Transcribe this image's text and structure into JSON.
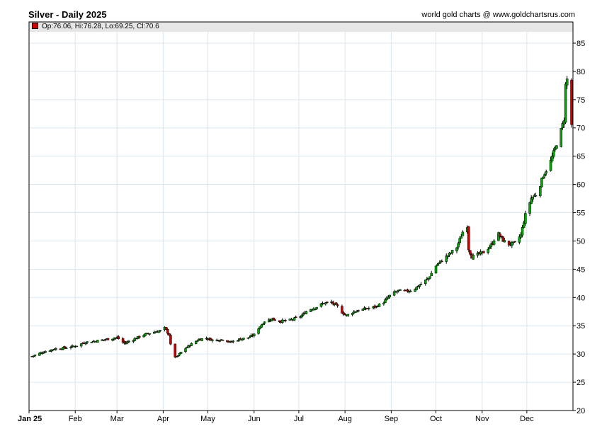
{
  "chart_title": "Silver - Daily 2025",
  "credit": "world gold charts @ www.goldchartsrus.com",
  "ohlc": "Op:76.06, Hi:76.28, Lo:69.25, Cl:70.6",
  "colors": {
    "up": "#00aa00",
    "down": "#cc0000",
    "grid": "#d9e6ef",
    "header": "#e6e6e6"
  },
  "chart_data": {
    "type": "candlestick",
    "title": "Silver - Daily 2025",
    "ylim": [
      20,
      87
    ],
    "yticks": [
      20,
      25,
      30,
      35,
      40,
      45,
      50,
      55,
      60,
      65,
      70,
      75,
      80,
      85
    ],
    "y_axis_side": "right",
    "grid": true,
    "x_labels": [
      {
        "label": "Jan 25",
        "day": 0
      },
      {
        "label": "Feb",
        "day": 31
      },
      {
        "label": "Mar",
        "day": 59
      },
      {
        "label": "Apr",
        "day": 90
      },
      {
        "label": "May",
        "day": 120
      },
      {
        "label": "Jun",
        "day": 151
      },
      {
        "label": "Jul",
        "day": 181
      },
      {
        "label": "Aug",
        "day": 212
      },
      {
        "label": "Sep",
        "day": 243
      },
      {
        "label": "Oct",
        "day": 273
      },
      {
        "label": "Nov",
        "day": 304
      },
      {
        "label": "Dec",
        "day": 334
      }
    ],
    "x_range_days": [
      0,
      364
    ],
    "close_path": [
      [
        2,
        29.6
      ],
      [
        10,
        30.4
      ],
      [
        17,
        30.9
      ],
      [
        24,
        31.1
      ],
      [
        31,
        31.4
      ],
      [
        38,
        32.1
      ],
      [
        45,
        32.3
      ],
      [
        52,
        32.6
      ],
      [
        59,
        32.9
      ],
      [
        64,
        31.9
      ],
      [
        70,
        32.6
      ],
      [
        77,
        33.4
      ],
      [
        84,
        33.9
      ],
      [
        88,
        34.1
      ],
      [
        91,
        34.6
      ],
      [
        94,
        33.4
      ],
      [
        96,
        29.8
      ],
      [
        99,
        29.4
      ],
      [
        103,
        30.6
      ],
      [
        108,
        31.6
      ],
      [
        114,
        32.6
      ],
      [
        119,
        32.8
      ],
      [
        124,
        32.4
      ],
      [
        130,
        32.6
      ],
      [
        135,
        32.1
      ],
      [
        141,
        32.6
      ],
      [
        147,
        32.9
      ],
      [
        151,
        33.4
      ],
      [
        154,
        34.6
      ],
      [
        158,
        35.8
      ],
      [
        163,
        36.2
      ],
      [
        168,
        35.8
      ],
      [
        174,
        35.9
      ],
      [
        180,
        36.4
      ],
      [
        183,
        36.8
      ],
      [
        187,
        37.8
      ],
      [
        192,
        38.2
      ],
      [
        197,
        38.9
      ],
      [
        202,
        39.2
      ],
      [
        207,
        38.4
      ],
      [
        210,
        37.4
      ],
      [
        213,
        36.8
      ],
      [
        217,
        37.4
      ],
      [
        222,
        37.8
      ],
      [
        228,
        38.1
      ],
      [
        233,
        38.4
      ],
      [
        238,
        39.2
      ],
      [
        243,
        40.6
      ],
      [
        248,
        41.2
      ],
      [
        253,
        41.1
      ],
      [
        258,
        41.4
      ],
      [
        263,
        42.4
      ],
      [
        268,
        43.4
      ],
      [
        273,
        45.6
      ],
      [
        278,
        46.8
      ],
      [
        283,
        47.9
      ],
      [
        287,
        48.9
      ],
      [
        291,
        51.6
      ],
      [
        294,
        52.7
      ],
      [
        295,
        48.6
      ],
      [
        297,
        47.2
      ],
      [
        301,
        47.6
      ],
      [
        306,
        48.1
      ],
      [
        311,
        49.6
      ],
      [
        314,
        51.6
      ],
      [
        318,
        50.1
      ],
      [
        322,
        49.4
      ],
      [
        326,
        49.6
      ],
      [
        330,
        51.1
      ],
      [
        333,
        54.6
      ],
      [
        337,
        57.6
      ],
      [
        341,
        58.4
      ],
      [
        345,
        61.6
      ],
      [
        349,
        63.4
      ],
      [
        353,
        66.4
      ],
      [
        357,
        69.6
      ],
      [
        359,
        71.6
      ],
      [
        360,
        77.6
      ],
      [
        361,
        78.6
      ],
      [
        362,
        71.4
      ],
      [
        363,
        74.1
      ],
      [
        364,
        70.6
      ]
    ]
  }
}
